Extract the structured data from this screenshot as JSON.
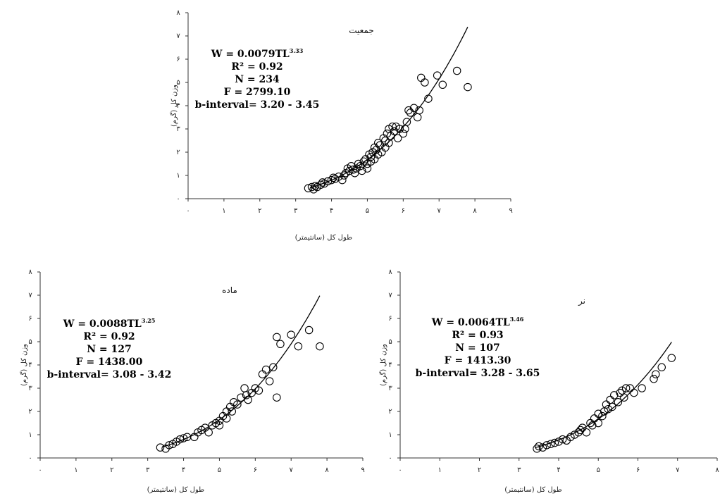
{
  "chart_data": [
    {
      "id": "total",
      "type": "scatter",
      "title": "جمعیت",
      "xlabel": "طول کل (سانتیمتر)",
      "ylabel": "وزن کل (گرم)",
      "xlim": [
        0,
        9
      ],
      "ylim": [
        0,
        8
      ],
      "x_tick_labels": [
        "۰",
        "۱",
        "۲",
        "۳",
        "۴",
        "۵",
        "۶",
        "۷",
        "۸",
        "۹"
      ],
      "y_tick_labels": [
        "۰",
        "۱",
        "۲",
        "۳",
        "۴",
        "۵",
        "۶",
        "۷",
        "۸"
      ],
      "fit": {
        "a": 0.0079,
        "b": 3.33,
        "x_range": [
          3.4,
          7.8
        ]
      },
      "stats": {
        "equation": "W = 0.0079TL",
        "exponent": "3.33",
        "r2": "R² = 0.92",
        "n": "N = 234",
        "f": "F = 2799.10",
        "b_interval": "b-interval= 3.20 - 3.45"
      },
      "points": [
        [
          3.35,
          0.45
        ],
        [
          3.45,
          0.5
        ],
        [
          3.5,
          0.4
        ],
        [
          3.55,
          0.55
        ],
        [
          3.6,
          0.5
        ],
        [
          3.7,
          0.6
        ],
        [
          3.75,
          0.7
        ],
        [
          3.8,
          0.65
        ],
        [
          3.9,
          0.75
        ],
        [
          4.0,
          0.8
        ],
        [
          4.05,
          0.9
        ],
        [
          4.1,
          0.85
        ],
        [
          4.2,
          0.95
        ],
        [
          4.3,
          0.8
        ],
        [
          4.35,
          1.0
        ],
        [
          4.4,
          1.1
        ],
        [
          4.45,
          1.3
        ],
        [
          4.5,
          1.2
        ],
        [
          4.55,
          1.4
        ],
        [
          4.6,
          1.25
        ],
        [
          4.65,
          1.1
        ],
        [
          4.7,
          1.3
        ],
        [
          4.75,
          1.5
        ],
        [
          4.8,
          1.4
        ],
        [
          4.85,
          1.2
        ],
        [
          4.9,
          1.6
        ],
        [
          4.95,
          1.7
        ],
        [
          5.0,
          1.5
        ],
        [
          5.0,
          1.3
        ],
        [
          5.05,
          1.9
        ],
        [
          5.1,
          1.8
        ],
        [
          5.1,
          1.6
        ],
        [
          5.15,
          2.0
        ],
        [
          5.2,
          2.2
        ],
        [
          5.2,
          1.7
        ],
        [
          5.25,
          2.1
        ],
        [
          5.3,
          1.9
        ],
        [
          5.3,
          2.4
        ],
        [
          5.35,
          2.3
        ],
        [
          5.4,
          2.0
        ],
        [
          5.45,
          2.6
        ],
        [
          5.5,
          2.5
        ],
        [
          5.5,
          2.2
        ],
        [
          5.55,
          2.8
        ],
        [
          5.6,
          3.0
        ],
        [
          5.6,
          2.4
        ],
        [
          5.65,
          2.7
        ],
        [
          5.7,
          3.1
        ],
        [
          5.75,
          2.9
        ],
        [
          5.8,
          3.1
        ],
        [
          5.85,
          2.6
        ],
        [
          5.9,
          3.0
        ],
        [
          6.0,
          2.8
        ],
        [
          6.05,
          3.0
        ],
        [
          6.1,
          3.3
        ],
        [
          6.15,
          3.8
        ],
        [
          6.2,
          3.7
        ],
        [
          6.3,
          3.9
        ],
        [
          6.4,
          3.5
        ],
        [
          6.45,
          3.8
        ],
        [
          6.5,
          5.2
        ],
        [
          6.6,
          5.0
        ],
        [
          6.7,
          4.3
        ],
        [
          6.95,
          5.3
        ],
        [
          7.1,
          4.9
        ],
        [
          7.5,
          5.5
        ],
        [
          7.8,
          4.8
        ]
      ]
    },
    {
      "id": "female",
      "type": "scatter",
      "title": "ماده",
      "xlabel": "طول کل (سانتیمتر)",
      "ylabel": "وزن کل (گرم)",
      "xlim": [
        0,
        9
      ],
      "ylim": [
        0,
        8
      ],
      "x_tick_labels": [
        "۰",
        "۱",
        "۲",
        "۳",
        "۴",
        "۵",
        "۶",
        "۷",
        "۸",
        "۹"
      ],
      "y_tick_labels": [
        "۰",
        "۱",
        "۲",
        "۳",
        "۴",
        "۵",
        "۶",
        "۷",
        "۸"
      ],
      "fit": {
        "a": 0.0088,
        "b": 3.25,
        "x_range": [
          3.4,
          7.8
        ]
      },
      "stats": {
        "equation": "W = 0.0088TL",
        "exponent": "3.25",
        "r2": "R² = 0.92",
        "n": "N = 127",
        "f": "F = 1438.00",
        "b_interval": "b-interval= 3.08 - 3.42"
      },
      "points": [
        [
          3.35,
          0.45
        ],
        [
          3.5,
          0.4
        ],
        [
          3.6,
          0.55
        ],
        [
          3.7,
          0.6
        ],
        [
          3.8,
          0.7
        ],
        [
          3.9,
          0.8
        ],
        [
          4.0,
          0.85
        ],
        [
          4.1,
          0.9
        ],
        [
          4.3,
          0.9
        ],
        [
          4.4,
          1.1
        ],
        [
          4.5,
          1.2
        ],
        [
          4.6,
          1.3
        ],
        [
          4.7,
          1.1
        ],
        [
          4.8,
          1.4
        ],
        [
          4.9,
          1.5
        ],
        [
          5.0,
          1.6
        ],
        [
          5.0,
          1.4
        ],
        [
          5.1,
          1.8
        ],
        [
          5.2,
          2.0
        ],
        [
          5.2,
          1.7
        ],
        [
          5.3,
          2.2
        ],
        [
          5.35,
          2.0
        ],
        [
          5.4,
          2.4
        ],
        [
          5.5,
          2.3
        ],
        [
          5.6,
          2.6
        ],
        [
          5.7,
          3.0
        ],
        [
          5.75,
          2.7
        ],
        [
          5.8,
          2.5
        ],
        [
          5.9,
          2.8
        ],
        [
          6.0,
          3.0
        ],
        [
          6.1,
          2.9
        ],
        [
          6.2,
          3.6
        ],
        [
          6.3,
          3.8
        ],
        [
          6.4,
          3.3
        ],
        [
          6.5,
          3.9
        ],
        [
          6.6,
          2.6
        ],
        [
          6.6,
          5.2
        ],
        [
          6.7,
          4.9
        ],
        [
          7.0,
          5.3
        ],
        [
          7.2,
          4.8
        ],
        [
          7.5,
          5.5
        ],
        [
          7.8,
          4.8
        ]
      ]
    },
    {
      "id": "male",
      "type": "scatter",
      "title": "نر",
      "xlabel": "طول کل (سانتیمتر)",
      "ylabel": "وزن کل (گرم)",
      "xlim": [
        0,
        8
      ],
      "ylim": [
        0,
        8
      ],
      "x_tick_labels": [
        "۰",
        "۱",
        "۲",
        "۳",
        "۴",
        "۵",
        "۶",
        "۷",
        "۸"
      ],
      "y_tick_labels": [
        "۰",
        "۱",
        "۲",
        "۳",
        "۴",
        "۵",
        "۶",
        "۷",
        "۸"
      ],
      "fit": {
        "a": 0.0064,
        "b": 3.46,
        "x_range": [
          3.4,
          6.85
        ]
      },
      "stats": {
        "equation": "W = 0.0064TL",
        "exponent": "3.46",
        "r2": "R² = 0.93",
        "n": "N = 107",
        "f": "F = 1413.30",
        "b_interval": "b-interval= 3.28 - 3.65"
      },
      "points": [
        [
          3.45,
          0.4
        ],
        [
          3.5,
          0.5
        ],
        [
          3.6,
          0.45
        ],
        [
          3.7,
          0.55
        ],
        [
          3.8,
          0.6
        ],
        [
          3.9,
          0.65
        ],
        [
          4.0,
          0.7
        ],
        [
          4.1,
          0.8
        ],
        [
          4.2,
          0.75
        ],
        [
          4.3,
          0.9
        ],
        [
          4.4,
          1.0
        ],
        [
          4.5,
          1.1
        ],
        [
          4.55,
          1.2
        ],
        [
          4.6,
          1.3
        ],
        [
          4.7,
          1.1
        ],
        [
          4.8,
          1.5
        ],
        [
          4.85,
          1.4
        ],
        [
          4.9,
          1.7
        ],
        [
          5.0,
          1.5
        ],
        [
          5.0,
          1.9
        ],
        [
          5.1,
          1.8
        ],
        [
          5.15,
          2.0
        ],
        [
          5.2,
          2.3
        ],
        [
          5.25,
          2.1
        ],
        [
          5.3,
          2.5
        ],
        [
          5.35,
          2.2
        ],
        [
          5.4,
          2.7
        ],
        [
          5.5,
          2.4
        ],
        [
          5.55,
          2.8
        ],
        [
          5.6,
          2.9
        ],
        [
          5.65,
          2.6
        ],
        [
          5.7,
          3.0
        ],
        [
          5.8,
          3.0
        ],
        [
          5.9,
          2.8
        ],
        [
          6.1,
          3.0
        ],
        [
          6.4,
          3.4
        ],
        [
          6.45,
          3.6
        ],
        [
          6.6,
          3.9
        ],
        [
          6.85,
          4.3
        ]
      ]
    }
  ]
}
